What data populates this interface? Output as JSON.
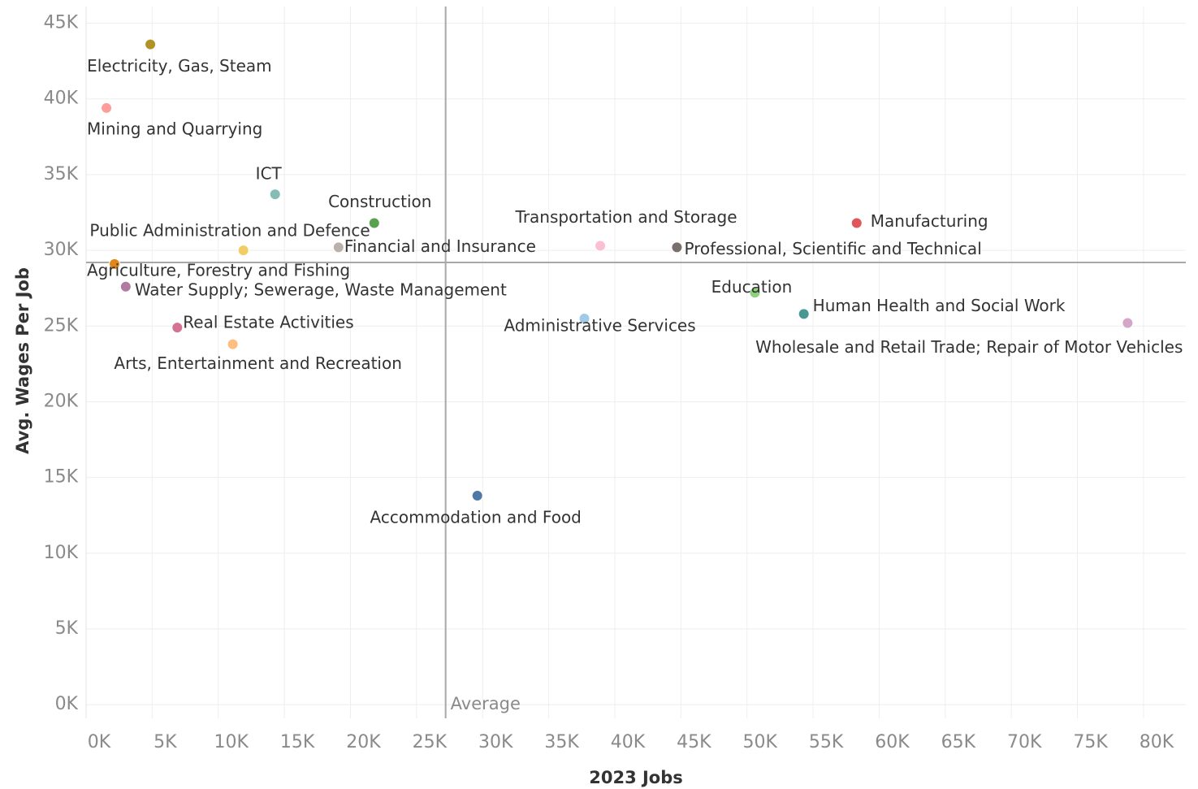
{
  "chart_data": {
    "type": "scatter",
    "x_label": "2023 Jobs",
    "y_label": "Avg. Wages Per Job",
    "xlim": [
      0,
      83200
    ],
    "ylim": [
      -900,
      46100
    ],
    "xticks": [
      {
        "value": 0,
        "label": "0K"
      },
      {
        "value": 5000,
        "label": "5K"
      },
      {
        "value": 10000,
        "label": "10K"
      },
      {
        "value": 15000,
        "label": "15K"
      },
      {
        "value": 20000,
        "label": "20K"
      },
      {
        "value": 25000,
        "label": "25K"
      },
      {
        "value": 30000,
        "label": "30K"
      },
      {
        "value": 35000,
        "label": "35K"
      },
      {
        "value": 40000,
        "label": "40K"
      },
      {
        "value": 45000,
        "label": "45K"
      },
      {
        "value": 50000,
        "label": "50K"
      },
      {
        "value": 55000,
        "label": "55K"
      },
      {
        "value": 60000,
        "label": "60K"
      },
      {
        "value": 65000,
        "label": "65K"
      },
      {
        "value": 70000,
        "label": "70K"
      },
      {
        "value": 75000,
        "label": "75K"
      },
      {
        "value": 80000,
        "label": "80K"
      }
    ],
    "yticks": [
      {
        "value": 0,
        "label": "0K"
      },
      {
        "value": 5000,
        "label": "5K"
      },
      {
        "value": 10000,
        "label": "10K"
      },
      {
        "value": 15000,
        "label": "15K"
      },
      {
        "value": 20000,
        "label": "20K"
      },
      {
        "value": 25000,
        "label": "25K"
      },
      {
        "value": 30000,
        "label": "30K"
      },
      {
        "value": 35000,
        "label": "35K"
      },
      {
        "value": 40000,
        "label": "40K"
      },
      {
        "value": 45000,
        "label": "45K"
      }
    ],
    "grid": true,
    "reference_lines": {
      "x": 27200,
      "y": 29200,
      "label": "Average"
    },
    "series": [
      {
        "name": "Electricity, Gas, Steam",
        "color": "#b09227",
        "x": [
          4860
        ],
        "values": [
          43600
        ]
      },
      {
        "name": "Mining and Quarrying",
        "color": "#ff9d9a",
        "x": [
          1540
        ],
        "values": [
          39400
        ]
      },
      {
        "name": "ICT",
        "color": "#86bcb6",
        "x": [
          14300
        ],
        "values": [
          33700
        ]
      },
      {
        "name": "Construction",
        "color": "#59a14f",
        "x": [
          21800
        ],
        "values": [
          31800
        ]
      },
      {
        "name": "Public Administration and Defence",
        "color": "#f1ce63",
        "x": [
          11900
        ],
        "values": [
          30000
        ]
      },
      {
        "name": "Financial and Insurance",
        "color": "#bab0ac",
        "x": [
          19100
        ],
        "values": [
          30200
        ]
      },
      {
        "name": "Agriculture, Forestry and Fishing",
        "color": "#e1861a",
        "x": [
          2150
        ],
        "values": [
          29100
        ]
      },
      {
        "name": "Water Supply; Sewerage, Waste Management",
        "color": "#b07aa1",
        "x": [
          3000
        ],
        "values": [
          27600
        ]
      },
      {
        "name": "Real Estate Activities",
        "color": "#d37295",
        "x": [
          6900
        ],
        "values": [
          24900
        ]
      },
      {
        "name": "Arts, Entertainment and Recreation",
        "color": "#ffbe7d",
        "x": [
          11100
        ],
        "values": [
          23800
        ]
      },
      {
        "name": "Accommodation and Food",
        "color": "#4e79a7",
        "x": [
          29600
        ],
        "values": [
          13800
        ]
      },
      {
        "name": "Transportation and Storage",
        "color": "#fabfd2",
        "x": [
          38900
        ],
        "values": [
          30300
        ]
      },
      {
        "name": "Professional, Scientific and Technical",
        "color": "#79706e",
        "x": [
          44700
        ],
        "values": [
          30200
        ]
      },
      {
        "name": "Manufacturing",
        "color": "#e15759",
        "x": [
          58300
        ],
        "values": [
          31800
        ]
      },
      {
        "name": "Education",
        "color": "#8cd17d",
        "x": [
          50600
        ],
        "values": [
          27200
        ]
      },
      {
        "name": "Administrative Services",
        "color": "#a0cbe8",
        "x": [
          37700
        ],
        "values": [
          25500
        ]
      },
      {
        "name": "Human Health and Social Work",
        "color": "#499894",
        "x": [
          54300
        ],
        "values": [
          25800
        ]
      },
      {
        "name": "Wholesale and Retail Trade; Repair of Motor Vehicles",
        "color": "#d4a6c8",
        "x": [
          78800
        ],
        "values": [
          25200
        ]
      }
    ]
  }
}
